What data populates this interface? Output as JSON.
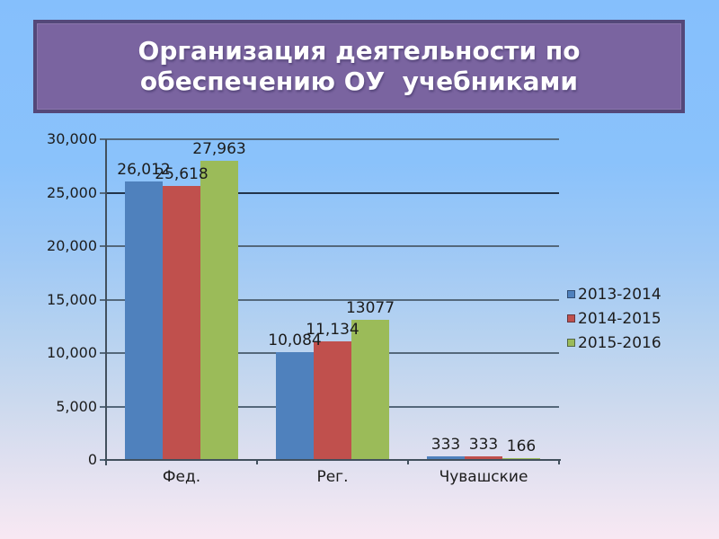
{
  "slide": {
    "title_line1": "Организация деятельности по",
    "title_line2": "обеспечению ОУ  учебниками",
    "colors": {
      "title_background": "#7a64a0",
      "title_border": "#544879",
      "title_text": "#ffffff",
      "background_top": "#85bffc",
      "background_bottom": "#f8e8f3"
    }
  },
  "chart_data": {
    "type": "bar",
    "categories": [
      "Фед.",
      "Рег.",
      "Чувашские"
    ],
    "series": [
      {
        "name": "2013-2014",
        "color": "#4f81bd",
        "values": [
          26012,
          10084,
          333
        ],
        "data_labels": [
          "26,012",
          "10,084",
          "333"
        ]
      },
      {
        "name": "2014-2015",
        "color": "#c0504d",
        "values": [
          25618,
          11134,
          333
        ],
        "data_labels": [
          "25,618",
          "11,134",
          "333"
        ]
      },
      {
        "name": "2015-2016",
        "color": "#9bbb59",
        "values": [
          27963,
          13077,
          166
        ],
        "data_labels": [
          "27,963",
          "13077",
          "166"
        ]
      }
    ],
    "y_axis": {
      "min": 0,
      "max": 30000,
      "ticks": [
        {
          "value": 0,
          "label": "0"
        },
        {
          "value": 5000,
          "label": "5,000"
        },
        {
          "value": 10000,
          "label": "10,000"
        },
        {
          "value": 15000,
          "label": "15,000"
        },
        {
          "value": 20000,
          "label": "20,000"
        },
        {
          "value": 25000,
          "label": "25,000"
        },
        {
          "value": 30000,
          "label": "30,000"
        }
      ]
    },
    "grid": true,
    "legend_position": "right"
  }
}
